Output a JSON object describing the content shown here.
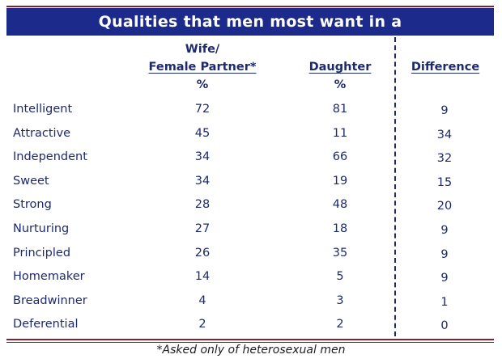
{
  "chart_data": {
    "type": "table",
    "title": "Qualities that men most want in a",
    "columns": [
      {
        "header_lines": [
          "Wife/",
          "Female Partner*"
        ],
        "unit": "%"
      },
      {
        "header_lines": [
          "Daughter"
        ],
        "unit": "%"
      },
      {
        "header_lines": [
          "Difference"
        ],
        "unit": ""
      }
    ],
    "rows": [
      {
        "label": "Intelligent",
        "values": [
          "72",
          "81",
          "9"
        ]
      },
      {
        "label": "Attractive",
        "values": [
          "45",
          "11",
          "34"
        ]
      },
      {
        "label": "Independent",
        "values": [
          "34",
          "66",
          "32"
        ]
      },
      {
        "label": "Sweet",
        "values": [
          "34",
          "19",
          "15"
        ]
      },
      {
        "label": "Strong",
        "values": [
          "28",
          "48",
          "20"
        ]
      },
      {
        "label": "Nurturing",
        "values": [
          "27",
          "18",
          "9"
        ]
      },
      {
        "label": "Principled",
        "values": [
          "26",
          "35",
          "9"
        ]
      },
      {
        "label": "Homemaker",
        "values": [
          "14",
          "5",
          "9"
        ]
      },
      {
        "label": "Breadwinner",
        "values": [
          "4",
          "3",
          "1"
        ]
      },
      {
        "label": "Deferential",
        "values": [
          "2",
          "2",
          "0"
        ]
      }
    ],
    "footnote": "*Asked only of heterosexual men"
  },
  "colors": {
    "title_bg": "#1c2a8c",
    "text": "#1d2a6e",
    "rule": "#8a1f2a"
  }
}
